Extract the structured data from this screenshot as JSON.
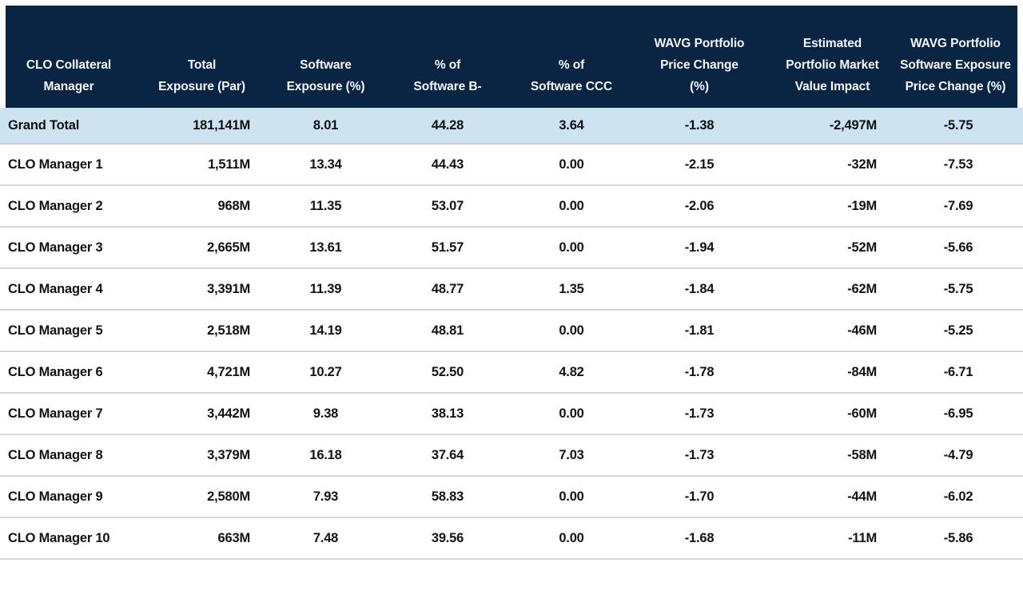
{
  "table": {
    "columns": [
      {
        "line1": "CLO Collateral",
        "line2": "Manager"
      },
      {
        "line1": "Total",
        "line2": "Exposure (Par)"
      },
      {
        "line1": "Software",
        "line2": "Exposure (%)"
      },
      {
        "line1": "% of",
        "line2": "Software B-"
      },
      {
        "line1": "% of",
        "line2": "Software CCC"
      },
      {
        "line1": "WAVG Portfolio",
        "line2": "Price Change",
        "line3": "(%)"
      },
      {
        "line1": "Estimated",
        "line2": "Portfolio Market",
        "line3": "Value Impact"
      },
      {
        "line1": "WAVG Portfolio",
        "line2": "Software Exposure",
        "line3": "Price Change (%)"
      }
    ],
    "rows": [
      {
        "cells": [
          "Grand Total",
          "181,141M",
          "8.01",
          "44.28",
          "3.64",
          "-1.38",
          "-2,497M",
          "-5.75"
        ]
      },
      {
        "cells": [
          "CLO Manager 1",
          "1,511M",
          "13.34",
          "44.43",
          "0.00",
          "-2.15",
          "-32M",
          "-7.53"
        ]
      },
      {
        "cells": [
          "CLO Manager 2",
          "968M",
          "11.35",
          "53.07",
          "0.00",
          "-2.06",
          "-19M",
          "-7.69"
        ]
      },
      {
        "cells": [
          "CLO Manager 3",
          "2,665M",
          "13.61",
          "51.57",
          "0.00",
          "-1.94",
          "-52M",
          "-5.66"
        ]
      },
      {
        "cells": [
          "CLO Manager 4",
          "3,391M",
          "11.39",
          "48.77",
          "1.35",
          "-1.84",
          "-62M",
          "-5.75"
        ]
      },
      {
        "cells": [
          "CLO Manager 5",
          "2,518M",
          "14.19",
          "48.81",
          "0.00",
          "-1.81",
          "-46M",
          "-5.25"
        ]
      },
      {
        "cells": [
          "CLO Manager 6",
          "4,721M",
          "10.27",
          "52.50",
          "4.82",
          "-1.78",
          "-84M",
          "-6.71"
        ]
      },
      {
        "cells": [
          "CLO Manager 7",
          "3,442M",
          "9.38",
          "38.13",
          "0.00",
          "-1.73",
          "-60M",
          "-6.95"
        ]
      },
      {
        "cells": [
          "CLO Manager 8",
          "3,379M",
          "16.18",
          "37.64",
          "7.03",
          "-1.73",
          "-58M",
          "-4.79"
        ]
      },
      {
        "cells": [
          "CLO Manager 9",
          "2,580M",
          "7.93",
          "58.83",
          "0.00",
          "-1.70",
          "-44M",
          "-6.02"
        ]
      },
      {
        "cells": [
          "CLO Manager 10",
          "663M",
          "7.48",
          "39.56",
          "0.00",
          "-1.68",
          "-11M",
          "-5.86"
        ]
      }
    ]
  },
  "colors": {
    "header_bg": "#0a2444",
    "header_text": "#f4f6f8",
    "grand_total_row_bg": "#cde4f0",
    "row_divider": "#d8d8d8",
    "body_text": "#131313"
  },
  "chart_data": {
    "type": "table",
    "title": "",
    "columns": [
      "CLO Collateral Manager",
      "Total Exposure (Par)",
      "Software Exposure (%)",
      "% of Software B-",
      "% of Software CCC",
      "WAVG Portfolio Price Change (%)",
      "Estimated Portfolio Market Value Impact",
      "WAVG Portfolio Software Exposure Price Change (%)"
    ],
    "units": {
      "total_exposure_par": "M",
      "market_value_impact": "M",
      "percent_columns": "%"
    },
    "rows": [
      [
        "Grand Total",
        181141,
        8.01,
        44.28,
        3.64,
        -1.38,
        -2497,
        -5.75
      ],
      [
        "CLO Manager 1",
        1511,
        13.34,
        44.43,
        0.0,
        -2.15,
        -32,
        -7.53
      ],
      [
        "CLO Manager 2",
        968,
        11.35,
        53.07,
        0.0,
        -2.06,
        -19,
        -7.69
      ],
      [
        "CLO Manager 3",
        2665,
        13.61,
        51.57,
        0.0,
        -1.94,
        -52,
        -5.66
      ],
      [
        "CLO Manager 4",
        3391,
        11.39,
        48.77,
        1.35,
        -1.84,
        -62,
        -5.75
      ],
      [
        "CLO Manager 5",
        2518,
        14.19,
        48.81,
        0.0,
        -1.81,
        -46,
        -5.25
      ],
      [
        "CLO Manager 6",
        4721,
        10.27,
        52.5,
        4.82,
        -1.78,
        -84,
        -6.71
      ],
      [
        "CLO Manager 7",
        3442,
        9.38,
        38.13,
        0.0,
        -1.73,
        -60,
        -6.95
      ],
      [
        "CLO Manager 8",
        3379,
        16.18,
        37.64,
        7.03,
        -1.73,
        -58,
        -4.79
      ],
      [
        "CLO Manager 9",
        2580,
        7.93,
        58.83,
        0.0,
        -1.7,
        -44,
        -6.02
      ],
      [
        "CLO Manager 10",
        663,
        7.48,
        39.56,
        0.0,
        -1.68,
        -11,
        -5.86
      ]
    ]
  }
}
